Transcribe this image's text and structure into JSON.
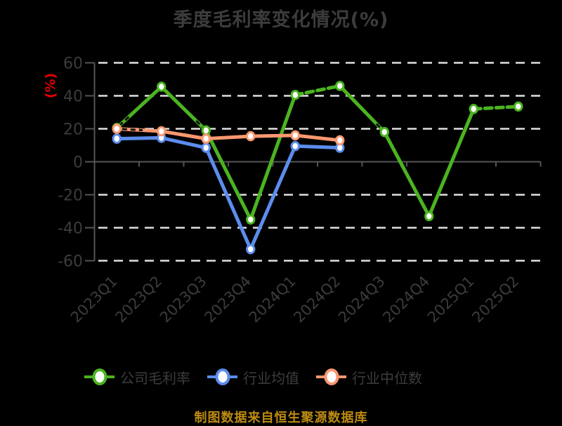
{
  "title": "季度毛利率变化情况(%)",
  "y_axis_unit": "(%)",
  "footer_note": "制图数据来自恒生聚源数据库",
  "colors": {
    "background": "#000000",
    "title_text": "#3c3c3c",
    "axis_text": "#3c3c3c",
    "axis_line": "#555555",
    "gridline": "#e0e0e0",
    "y_unit_red": "#e60000",
    "footer_gold": "#bd8b11",
    "marker_fill": "#ffffff"
  },
  "chart_data": {
    "type": "line",
    "title": "季度毛利率变化情况(%)",
    "ylabel": "(%)",
    "categories": [
      "2023Q1",
      "2023Q2",
      "2023Q3",
      "2023Q4",
      "2024Q1",
      "2024Q2",
      "2024Q3",
      "2024Q4",
      "2025Q1",
      "2025Q2"
    ],
    "series": [
      {
        "name": "公司毛利率",
        "color": "#4bb420",
        "values": [
          20.5,
          45.5,
          19,
          -35,
          40.5,
          46,
          18,
          -33,
          32,
          33.5
        ],
        "dashed_segments": [
          [
            4,
            5
          ],
          [
            8,
            9
          ]
        ]
      },
      {
        "name": "行业均值",
        "color": "#5c8dee",
        "values": [
          14,
          14.5,
          8.5,
          -53,
          9.5,
          8.5,
          null,
          null,
          null,
          null
        ],
        "dashed_segments": []
      },
      {
        "name": "行业中位数",
        "color": "#fa9870",
        "values": [
          20,
          18.5,
          14,
          15.5,
          16,
          13,
          null,
          null,
          null,
          null
        ],
        "dashed_segments": []
      }
    ],
    "ylim": [
      -60,
      60
    ],
    "yticks": [
      60,
      40,
      20,
      0,
      -20,
      -40,
      -60
    ],
    "grid": "horizontal dashed",
    "legend_position": "bottom"
  }
}
